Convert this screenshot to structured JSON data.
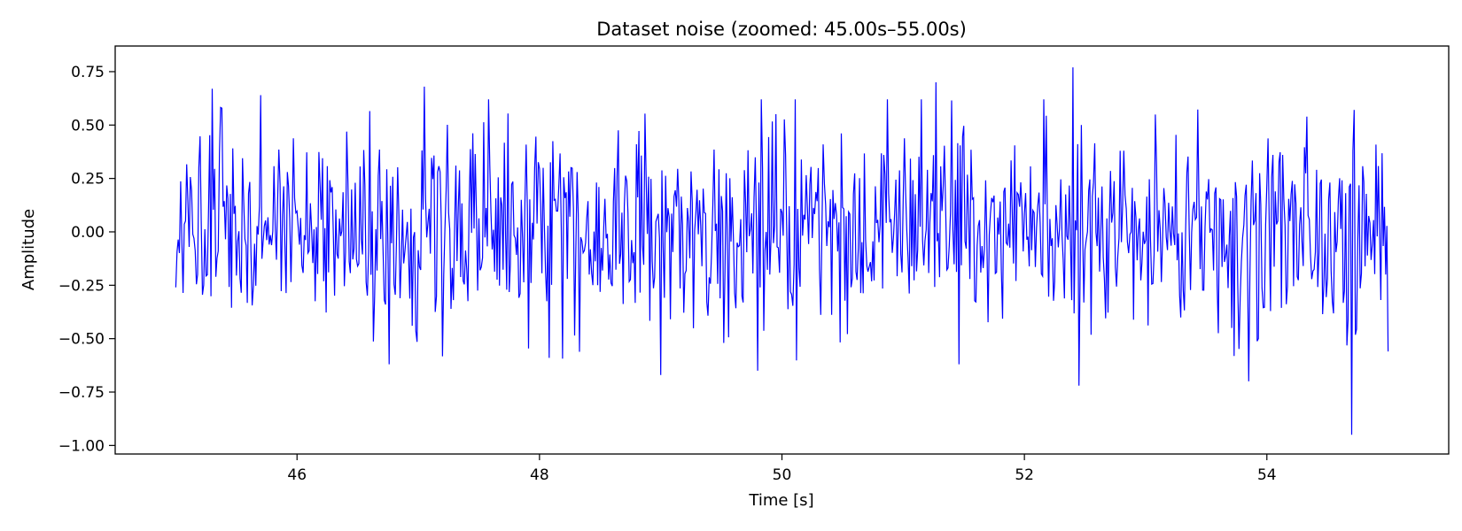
{
  "chart_data": {
    "type": "line",
    "title": "Dataset noise (zoomed: 45.00s–55.00s)",
    "xlabel": "Time [s]",
    "ylabel": "Amplitude",
    "xlim": [
      44.5,
      55.5
    ],
    "ylim": [
      -1.04,
      0.87
    ],
    "xticks": [
      46,
      48,
      50,
      52,
      54
    ],
    "xtick_labels": [
      "46",
      "48",
      "50",
      "52",
      "54"
    ],
    "yticks": [
      0.75,
      0.5,
      0.25,
      0.0,
      -0.25,
      -0.5,
      -0.75,
      -1.0
    ],
    "ytick_labels": [
      "0.75",
      "0.50",
      "0.25",
      "0.00",
      "−0.25",
      "−0.50",
      "−0.75",
      "−1.00"
    ],
    "grid": false,
    "legend": "none",
    "series": [
      {
        "color": "#0000ff",
        "x_range": [
          45.0,
          55.0
        ],
        "sample_step": 0.01,
        "highlights": [
          {
            "x": 45.3,
            "y": 0.67
          },
          {
            "x": 45.7,
            "y": 0.64
          },
          {
            "x": 47.05,
            "y": 0.68
          },
          {
            "x": 48.8,
            "y": 0.41
          },
          {
            "x": 49.0,
            "y": -0.67
          },
          {
            "x": 49.8,
            "y": -0.65
          },
          {
            "x": 51.27,
            "y": 0.7
          },
          {
            "x": 52.4,
            "y": 0.77
          },
          {
            "x": 52.45,
            "y": -0.72
          },
          {
            "x": 53.85,
            "y": -0.7
          },
          {
            "x": 54.7,
            "y": -0.95
          },
          {
            "x": 55.0,
            "y": -0.56
          }
        ]
      }
    ]
  }
}
